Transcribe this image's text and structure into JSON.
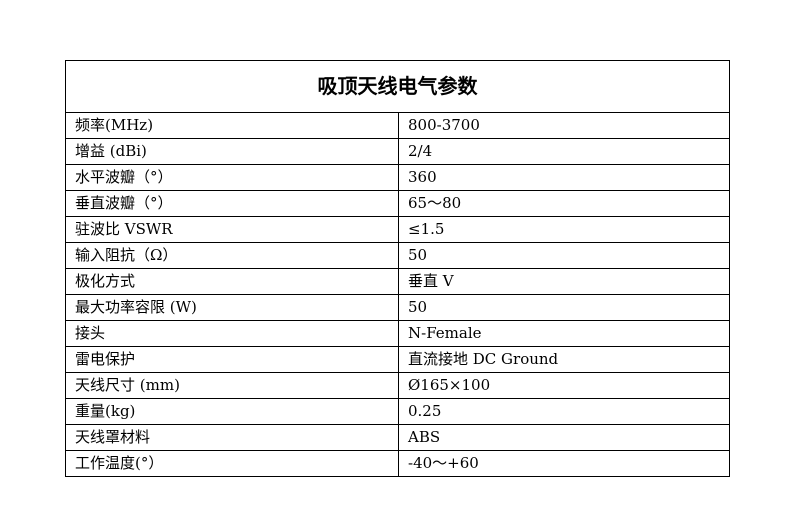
{
  "table": {
    "title": "吸顶天线电气参数",
    "rows": [
      {
        "param": "频率(MHz)",
        "value": "800-3700"
      },
      {
        "param": "增益 (dBi)",
        "value": "2/4"
      },
      {
        "param": "水平波瓣（°）",
        "value": "360"
      },
      {
        "param": "垂直波瓣（°）",
        "value": "65～80"
      },
      {
        "param": "驻波比 VSWR",
        "value": "≤1.5"
      },
      {
        "param": "输入阻抗（Ω）",
        "value": "50"
      },
      {
        "param": "极化方式",
        "value": "垂直 V"
      },
      {
        "param": "最大功率容限 (W)",
        "value": "50"
      },
      {
        "param": "接头",
        "value": "N-Female"
      },
      {
        "param": "雷电保护",
        "value": "直流接地 DC Ground"
      },
      {
        "param": "天线尺寸 (mm)",
        "value": "Ø165×100"
      },
      {
        "param": "重量(kg)",
        "value": "0.25"
      },
      {
        "param": "天线罩材料",
        "value": "ABS"
      },
      {
        "param": "工作温度(°）",
        "value": "-40～+60"
      }
    ]
  }
}
